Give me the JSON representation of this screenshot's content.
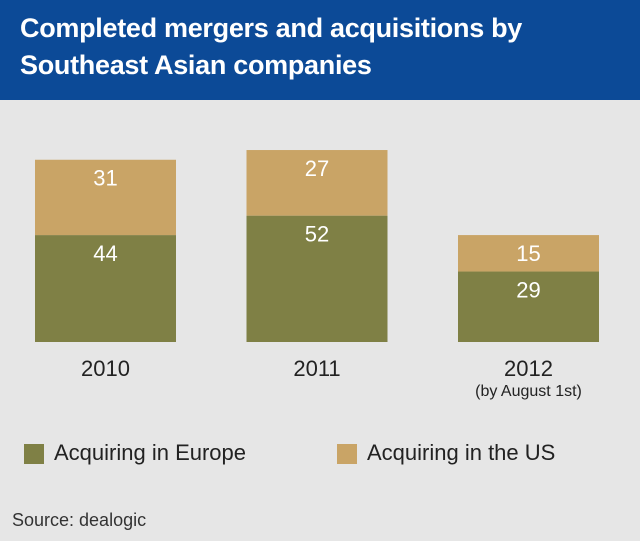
{
  "chart_data": {
    "type": "stacked-bar",
    "title": "Completed mergers and acquisitions by Southeast Asian companies",
    "categories": [
      "2010",
      "2011",
      "2012"
    ],
    "category_notes": [
      null,
      null,
      "(by August 1st)"
    ],
    "series": [
      {
        "name": "Acquiring in Europe",
        "color": "#7f8045",
        "values": [
          44,
          52,
          29
        ]
      },
      {
        "name": "Acquiring in the US",
        "color": "#c9a466",
        "values": [
          31,
          27,
          15
        ]
      }
    ],
    "source": "Source: dealogic"
  }
}
